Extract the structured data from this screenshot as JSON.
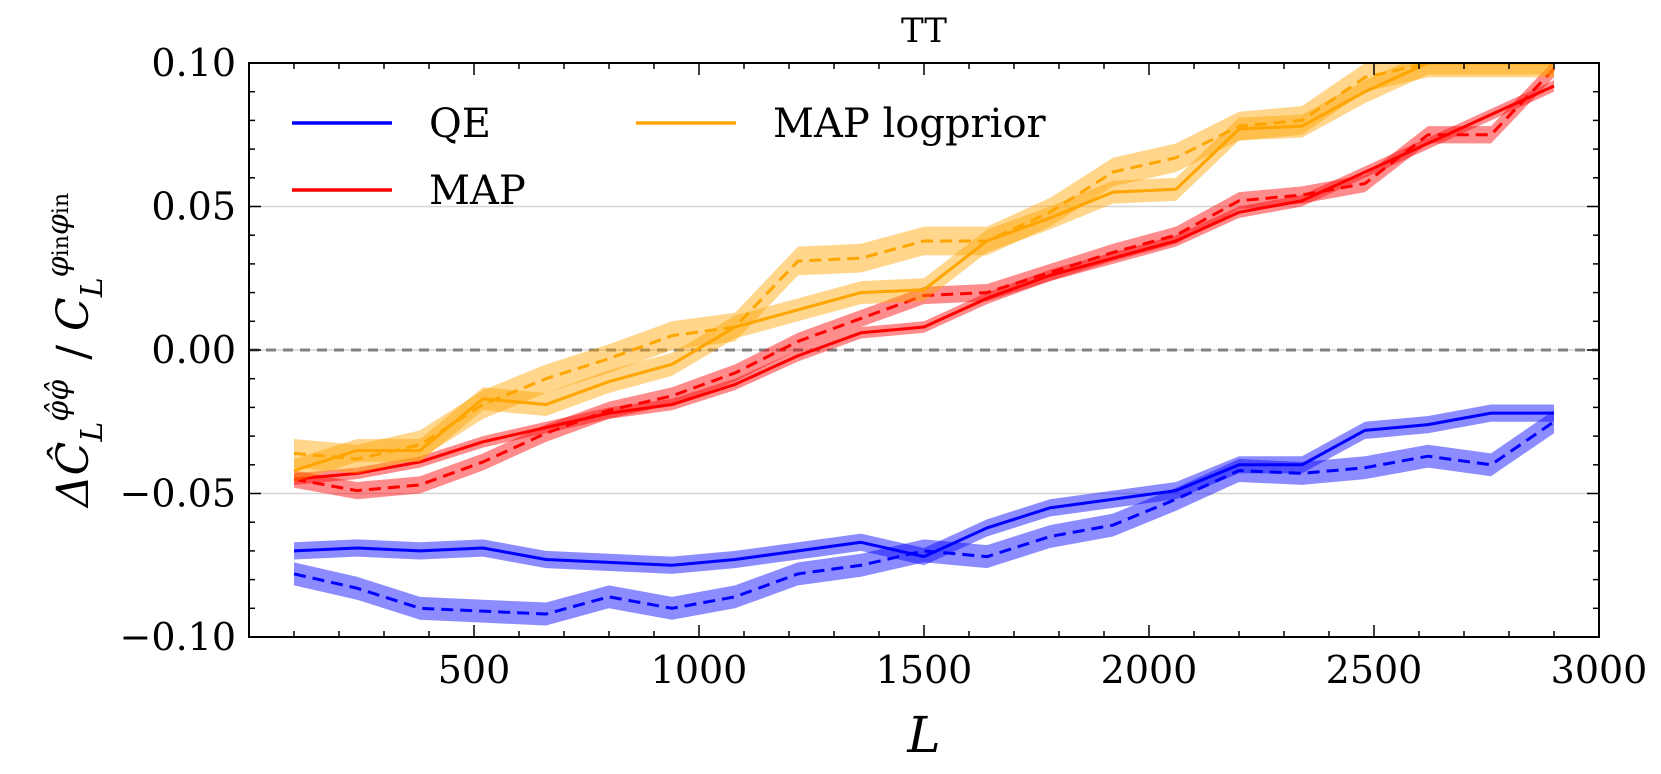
{
  "chart_data": {
    "type": "line",
    "title": "TT",
    "xlabel": "L",
    "ylabel": "ΔĈLφ̂φ̂ / CLφinφin",
    "xlim": [
      0,
      3000
    ],
    "ylim": [
      -0.1,
      0.1
    ],
    "xticks": [
      500,
      1000,
      1500,
      2000,
      2500,
      3000
    ],
    "xtick_labels": [
      "500",
      "1000",
      "1500",
      "2000",
      "2500",
      "3000"
    ],
    "yticks": [
      -0.1,
      -0.05,
      0.0,
      0.05,
      0.1
    ],
    "ytick_labels": [
      "−0.10",
      "−0.05",
      "0.00",
      "0.05",
      "0.10"
    ],
    "grid_y": [
      -0.05,
      0.0,
      0.05
    ],
    "zero_line": 0.0,
    "legend_position": "top-left",
    "legend": [
      {
        "name": "QE",
        "color": "#0000ff"
      },
      {
        "name": "MAP logprior",
        "color": "#ffa500"
      },
      {
        "name": "MAP",
        "color": "#ff0000"
      }
    ],
    "x": [
      100,
      240,
      380,
      520,
      660,
      800,
      940,
      1080,
      1220,
      1360,
      1500,
      1640,
      1780,
      1920,
      2060,
      2200,
      2340,
      2480,
      2620,
      2760,
      2900
    ],
    "series": [
      {
        "name": "QE",
        "style": "solid",
        "color": "#0000ff",
        "band": 0.003,
        "values": [
          -0.07,
          -0.069,
          -0.07,
          -0.069,
          -0.073,
          -0.074,
          -0.075,
          -0.073,
          -0.07,
          -0.067,
          -0.072,
          -0.062,
          -0.055,
          -0.052,
          -0.049,
          -0.04,
          -0.04,
          -0.028,
          -0.026,
          -0.022,
          -0.022
        ]
      },
      {
        "name": "QE",
        "style": "dashed",
        "color": "#0000ff",
        "band": 0.004,
        "values": [
          -0.078,
          -0.083,
          -0.09,
          -0.091,
          -0.092,
          -0.086,
          -0.09,
          -0.086,
          -0.078,
          -0.075,
          -0.07,
          -0.072,
          -0.065,
          -0.061,
          -0.052,
          -0.042,
          -0.043,
          -0.041,
          -0.037,
          -0.04,
          -0.025
        ]
      },
      {
        "name": "MAP",
        "style": "solid",
        "color": "#ff0000",
        "band": 0.002,
        "values": [
          -0.045,
          -0.043,
          -0.039,
          -0.032,
          -0.027,
          -0.022,
          -0.019,
          -0.012,
          -0.002,
          0.006,
          0.008,
          0.018,
          0.026,
          0.032,
          0.038,
          0.048,
          0.052,
          0.062,
          0.072,
          0.082,
          0.092
        ]
      },
      {
        "name": "MAP",
        "style": "dashed",
        "color": "#ff0000",
        "band": 0.003,
        "values": [
          -0.045,
          -0.049,
          -0.047,
          -0.039,
          -0.029,
          -0.021,
          -0.016,
          -0.008,
          0.003,
          0.011,
          0.019,
          0.02,
          0.027,
          0.034,
          0.04,
          0.052,
          0.054,
          0.058,
          0.075,
          0.075,
          0.098
        ]
      },
      {
        "name": "MAP logprior",
        "style": "solid",
        "color": "#ffa500",
        "band": 0.004,
        "values": [
          -0.042,
          -0.035,
          -0.035,
          -0.017,
          -0.019,
          -0.011,
          -0.005,
          0.008,
          0.014,
          0.02,
          0.021,
          0.038,
          0.046,
          0.055,
          0.056,
          0.077,
          0.078,
          0.09,
          0.1,
          0.1,
          0.1
        ]
      },
      {
        "name": "MAP logprior",
        "style": "dashed",
        "color": "#ffa500",
        "band": 0.005,
        "values": [
          -0.036,
          -0.038,
          -0.033,
          -0.019,
          -0.01,
          -0.003,
          0.005,
          0.008,
          0.031,
          0.032,
          0.038,
          0.038,
          0.048,
          0.062,
          0.067,
          0.078,
          0.08,
          0.095,
          0.1,
          0.1,
          0.1
        ]
      }
    ]
  }
}
